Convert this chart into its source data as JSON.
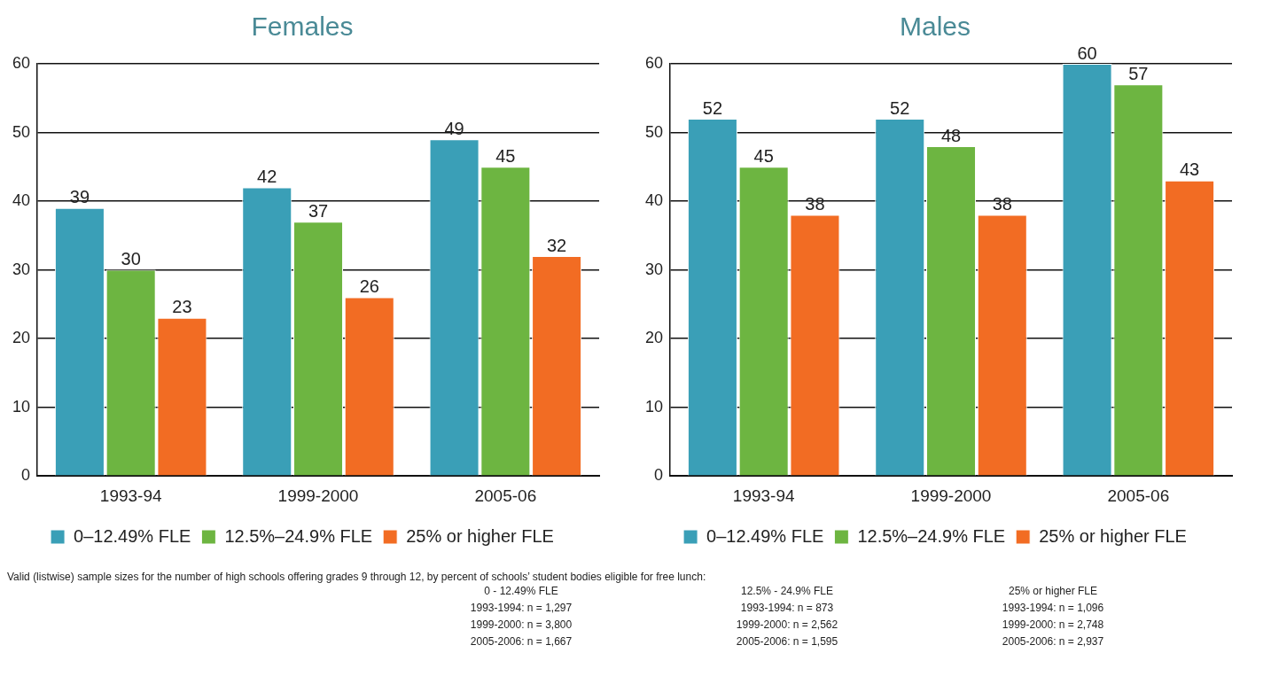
{
  "chart_data": [
    {
      "type": "bar",
      "title": "Females",
      "categories": [
        "1993-94",
        "1999-2000",
        "2005-06"
      ],
      "series": [
        {
          "name": "0–12.49% FLE",
          "color": "#3a9fb7",
          "values": [
            39,
            42,
            49
          ]
        },
        {
          "name": "12.5%–24.9% FLE",
          "color": "#6db541",
          "values": [
            30,
            37,
            45
          ]
        },
        {
          "name": "25% or higher FLE",
          "color": "#f26c23",
          "values": [
            23,
            26,
            32
          ]
        }
      ],
      "ylim": [
        0,
        60
      ],
      "yticks": [
        0,
        10,
        20,
        30,
        40,
        50,
        60
      ],
      "grid": "y",
      "legend": "bottom",
      "data_labels": true
    },
    {
      "type": "bar",
      "title": "Males",
      "categories": [
        "1993-94",
        "1999-2000",
        "2005-06"
      ],
      "series": [
        {
          "name": "0–12.49% FLE",
          "color": "#3a9fb7",
          "values": [
            52,
            52,
            60
          ]
        },
        {
          "name": "12.5%–24.9% FLE",
          "color": "#6db541",
          "values": [
            45,
            48,
            57
          ]
        },
        {
          "name": "25% or higher FLE",
          "color": "#f26c23",
          "values": [
            38,
            38,
            43
          ]
        }
      ],
      "ylim": [
        0,
        60
      ],
      "yticks": [
        0,
        10,
        20,
        30,
        40,
        50,
        60
      ],
      "grid": "y",
      "legend": "bottom",
      "data_labels": true
    },
    {
      "type": "other",
      "annotations": [
        "Valid (listwise) sample sizes for the number of high schools offering grades 9 through 12, by percent of schools’ student bodies eligible for free lunch:",
        "0 - 12.49% FLE\n1993-1994: n = 1,297\n1999-2000: n = 3,800\n2005-2006: n = 1,667",
        "12.5% - 24.9% FLE\n1993-1994: n = 873\n1999-2000: n = 2,562\n2005-2006: n = 1,595",
        "25% or higher FLE\n1993-1994: n = 1,096\n1999-2000: n = 2,748\n2005-2006: n = 2,937"
      ]
    }
  ]
}
